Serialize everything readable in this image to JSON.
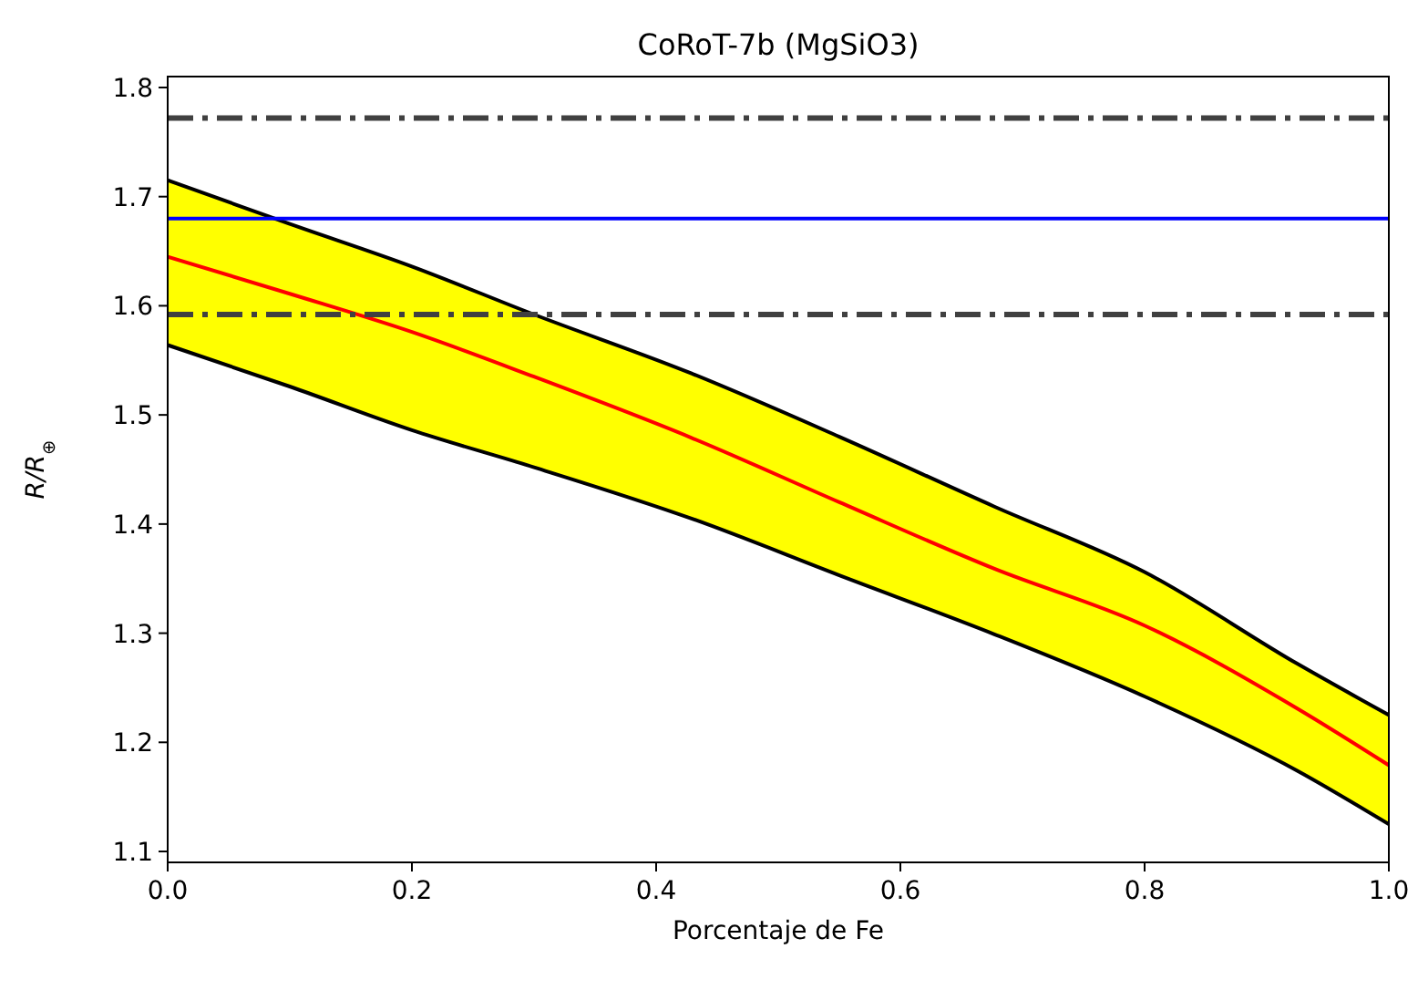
{
  "chart_data": {
    "type": "line",
    "title": "CoRoT-7b (MgSiO3)",
    "xlabel": "Porcentaje de Fe",
    "ylabel": "R/R$_{⊕}$",
    "x": [
      0,
      0.1,
      0.2,
      0.3,
      0.429,
      0.55,
      0.677,
      0.8,
      0.925,
      1
    ],
    "series": [
      {
        "color": "#ff0000",
        "values": [
          1.645,
          1.611,
          1.576,
          1.535,
          1.479,
          1.42,
          1.359,
          1.307,
          1.231,
          1.179
        ],
        "lower": [
          1.564,
          1.526,
          1.486,
          1.452,
          1.405,
          1.353,
          1.299,
          1.242,
          1.174,
          1.125
        ],
        "upper": [
          1.715,
          1.675,
          1.636,
          1.592,
          1.538,
          1.48,
          1.416,
          1.356,
          1.272,
          1.225
        ]
      },
      {
        "color": "#000000",
        "values": [
          1.564,
          1.526,
          1.486,
          1.452,
          1.405,
          1.353,
          1.299,
          1.242,
          1.174,
          1.125
        ]
      },
      {
        "color": "#000000",
        "values": [
          1.715,
          1.675,
          1.636,
          1.592,
          1.538,
          1.48,
          1.416,
          1.356,
          1.272,
          1.225
        ]
      }
    ],
    "ref_lines": [
      {
        "axis": "y",
        "value": 1.772,
        "color": "#404040",
        "line_style": "dashdot"
      },
      {
        "axis": "y",
        "value": 1.68,
        "color": "#0000ff",
        "line_style": "solid"
      },
      {
        "axis": "y",
        "value": 1.592,
        "color": "#404040",
        "line_style": "dashdot"
      }
    ],
    "xlim": [
      0,
      1
    ],
    "xticks": [
      {
        "value": 0,
        "label": "0.0"
      },
      0.2,
      0.4,
      0.6,
      0.8,
      {
        "value": 1,
        "label": "1.0"
      }
    ],
    "ylim": [
      1.09,
      1.81
    ],
    "yticks": [
      1.1,
      1.2,
      1.3,
      1.4,
      1.5,
      1.6,
      1.7,
      1.8
    ],
    "grid": false
  }
}
